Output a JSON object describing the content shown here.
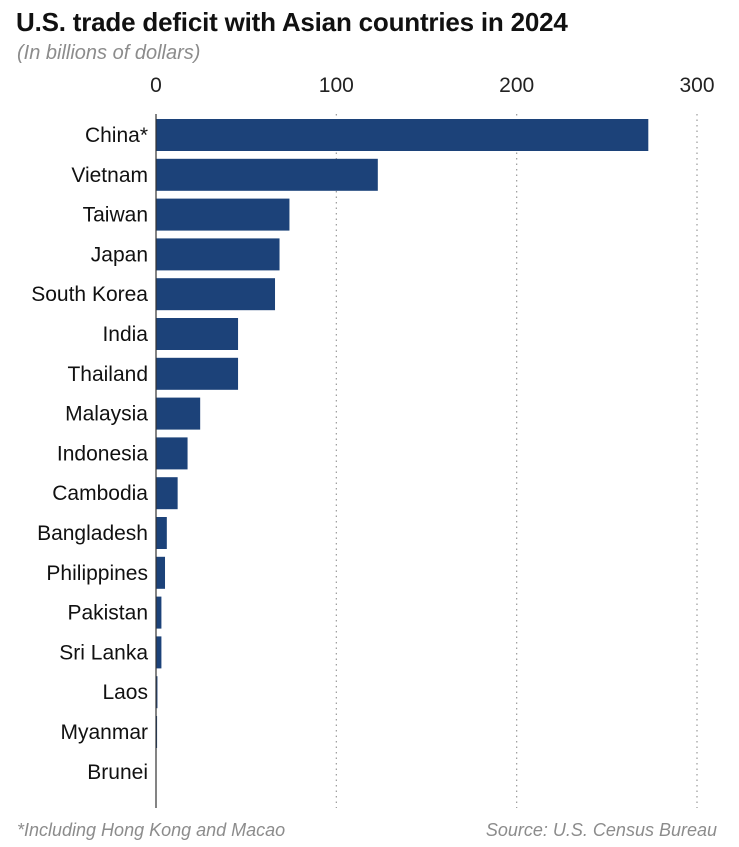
{
  "chart_data": {
    "type": "bar",
    "orientation": "horizontal",
    "title": "U.S. trade deficit with Asian countries in 2024",
    "subtitle": "(In billions of dollars)",
    "categories": [
      "China*",
      "Vietnam",
      "Taiwan",
      "Japan",
      "South Korea",
      "India",
      "Thailand",
      "Malaysia",
      "Indonesia",
      "Cambodia",
      "Bangladesh",
      "Philippines",
      "Pakistan",
      "Sri Lanka",
      "Laos",
      "Myanmar",
      "Brunei"
    ],
    "values": [
      273,
      123,
      74,
      68.5,
      66,
      45.5,
      45.5,
      24.5,
      17.5,
      12,
      6,
      5,
      3,
      3,
      0.8,
      0.6,
      0.1
    ],
    "xlim": [
      0,
      300
    ],
    "xticks": [
      0,
      100,
      200,
      300
    ],
    "xtick_labels": [
      "0",
      "100",
      "200",
      "300"
    ],
    "grid": "vertical dotted",
    "bar_color": "#1c4279",
    "footnote": "*Including Hong Kong and Macao",
    "source": "Source: U.S. Census Bureau"
  }
}
